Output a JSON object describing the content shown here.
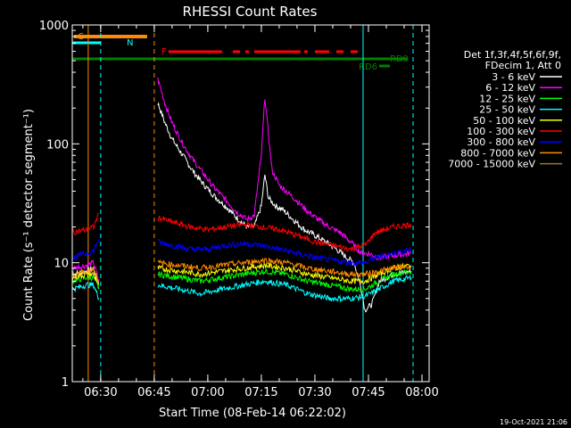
{
  "chart_data": {
    "type": "line",
    "title": "RHESSI Count Rates",
    "xlabel": "Start Time (08-Feb-14 06:22:02)",
    "ylabel": "Count Rate (s⁻¹ detector segment⁻¹)",
    "y_scale": "log",
    "ylim": [
      1,
      1000
    ],
    "xlim": [
      "06:22:02",
      "08:02:00"
    ],
    "x_ticks": [
      "06:30",
      "06:45",
      "07:00",
      "07:15",
      "07:30",
      "07:45",
      "08:00"
    ],
    "y_ticks": [
      "1",
      "10",
      "100",
      "1000"
    ],
    "grid": false,
    "legend_position": "right",
    "legend_header": [
      "Det 1f,3f,4f,5f,6f,9f,",
      "FDecim 1, Att 0"
    ],
    "series": [
      {
        "name": "3 - 6 keV",
        "color": "#ffffff",
        "points": [
          [
            "06:22:02",
            8
          ],
          [
            "06:26:00",
            8.5
          ],
          [
            "06:28:00",
            9
          ],
          [
            "06:29:30",
            6
          ],
          "gap",
          [
            "06:46:00",
            220
          ],
          [
            "06:48:00",
            150
          ],
          [
            "06:50:00",
            110
          ],
          [
            "06:53:00",
            80
          ],
          [
            "06:56:00",
            58
          ],
          [
            "06:59:00",
            45
          ],
          [
            "07:02:00",
            36
          ],
          [
            "07:05:00",
            30
          ],
          [
            "07:08:00",
            24
          ],
          [
            "07:11:00",
            20
          ],
          [
            "07:13:00",
            20
          ],
          [
            "07:15:00",
            30
          ],
          [
            "07:16:00",
            55
          ],
          [
            "07:17:00",
            35
          ],
          [
            "07:19:00",
            30
          ],
          [
            "07:21:00",
            28
          ],
          [
            "07:24:00",
            23
          ],
          [
            "07:27:00",
            19
          ],
          [
            "07:30:00",
            17
          ],
          [
            "07:33:00",
            15
          ],
          [
            "07:36:00",
            13
          ],
          [
            "07:39:00",
            11
          ],
          [
            "07:41:00",
            10
          ],
          [
            "07:43:00",
            6
          ],
          [
            "07:44:00",
            4
          ],
          [
            "07:46:00",
            4.5
          ],
          [
            "07:48:00",
            7
          ],
          [
            "07:52:00",
            8
          ],
          [
            "07:57:00",
            8.5
          ]
        ]
      },
      {
        "name": "6 - 12 keV",
        "color": "#ff00ff",
        "points": [
          [
            "06:22:02",
            9
          ],
          [
            "06:26:00",
            9.5
          ],
          [
            "06:28:00",
            10
          ],
          [
            "06:29:30",
            7
          ],
          "gap",
          [
            "06:46:00",
            350
          ],
          [
            "06:48:00",
            220
          ],
          [
            "06:50:00",
            150
          ],
          [
            "06:53:00",
            100
          ],
          [
            "06:56:00",
            72
          ],
          [
            "06:59:00",
            55
          ],
          [
            "07:02:00",
            42
          ],
          [
            "07:05:00",
            34
          ],
          [
            "07:08:00",
            27
          ],
          [
            "07:11:00",
            23
          ],
          [
            "07:13:00",
            25
          ],
          [
            "07:15:00",
            80
          ],
          [
            "07:16:00",
            250
          ],
          [
            "07:17:00",
            120
          ],
          [
            "07:18:00",
            60
          ],
          [
            "07:20:00",
            45
          ],
          [
            "07:22:00",
            40
          ],
          [
            "07:25:00",
            33
          ],
          [
            "07:28:00",
            27
          ],
          [
            "07:31:00",
            23
          ],
          [
            "07:34:00",
            20
          ],
          [
            "07:37:00",
            18
          ],
          [
            "07:40:00",
            15
          ],
          [
            "07:43:00",
            12
          ],
          [
            "07:45:00",
            12
          ],
          [
            "07:48:00",
            11
          ],
          [
            "07:52:00",
            11.5
          ],
          [
            "07:57:00",
            12
          ]
        ]
      },
      {
        "name": "12 - 25 keV",
        "color": "#00ff00",
        "points": [
          [
            "06:22:02",
            7
          ],
          [
            "06:26:00",
            7.5
          ],
          [
            "06:28:00",
            7.5
          ],
          [
            "06:29:30",
            6
          ],
          "gap",
          [
            "06:46:00",
            8
          ],
          [
            "06:52:00",
            7.5
          ],
          [
            "06:58:00",
            7
          ],
          [
            "07:04:00",
            7.5
          ],
          [
            "07:10:00",
            8
          ],
          [
            "07:16:00",
            8.5
          ],
          [
            "07:22:00",
            8
          ],
          [
            "07:28:00",
            7
          ],
          [
            "07:34:00",
            6.5
          ],
          [
            "07:40:00",
            6
          ],
          [
            "07:44:00",
            6
          ],
          [
            "07:48:00",
            7
          ],
          [
            "07:52:00",
            8
          ],
          [
            "07:57:00",
            8.5
          ]
        ]
      },
      {
        "name": "25 - 50 keV",
        "color": "#00ffff",
        "points": [
          [
            "06:22:02",
            6
          ],
          [
            "06:26:00",
            6.5
          ],
          [
            "06:28:00",
            6.5
          ],
          [
            "06:29:30",
            5
          ],
          "gap",
          [
            "06:46:00",
            6.5
          ],
          [
            "06:52:00",
            6
          ],
          [
            "06:58:00",
            5.5
          ],
          [
            "07:04:00",
            6
          ],
          [
            "07:10:00",
            6.5
          ],
          [
            "07:16:00",
            7
          ],
          [
            "07:22:00",
            6.5
          ],
          [
            "07:28:00",
            5.5
          ],
          [
            "07:34:00",
            5
          ],
          [
            "07:40:00",
            5
          ],
          [
            "07:44:00",
            5.2
          ],
          [
            "07:48:00",
            6
          ],
          [
            "07:52:00",
            7
          ],
          [
            "07:57:00",
            7.5
          ]
        ]
      },
      {
        "name": "50 - 100 keV",
        "color": "#ffff00",
        "points": [
          [
            "06:22:02",
            7.5
          ],
          [
            "06:26:00",
            8
          ],
          [
            "06:28:00",
            8
          ],
          [
            "06:29:30",
            6.5
          ],
          "gap",
          [
            "06:46:00",
            9
          ],
          [
            "06:52:00",
            8.5
          ],
          [
            "06:58:00",
            8
          ],
          [
            "07:04:00",
            8.5
          ],
          [
            "07:10:00",
            9
          ],
          [
            "07:16:00",
            9.5
          ],
          [
            "07:22:00",
            9
          ],
          [
            "07:28:00",
            8
          ],
          [
            "07:34:00",
            7.5
          ],
          [
            "07:40:00",
            7
          ],
          [
            "07:44:00",
            7
          ],
          [
            "07:48:00",
            8
          ],
          [
            "07:52:00",
            9
          ],
          [
            "07:57:00",
            9.5
          ]
        ]
      },
      {
        "name": "100 - 300 keV",
        "color": "#ff0000",
        "points": [
          [
            "06:22:02",
            18
          ],
          [
            "06:26:00",
            19
          ],
          [
            "06:28:00",
            20
          ],
          [
            "06:29:30",
            26
          ],
          "gap",
          [
            "06:46:00",
            24
          ],
          [
            "06:50:00",
            22
          ],
          [
            "06:55:00",
            20
          ],
          [
            "07:00:00",
            19
          ],
          [
            "07:05:00",
            20
          ],
          [
            "07:10:00",
            21
          ],
          [
            "07:15:00",
            20
          ],
          [
            "07:20:00",
            19
          ],
          [
            "07:25:00",
            17
          ],
          [
            "07:30:00",
            15
          ],
          [
            "07:35:00",
            14
          ],
          [
            "07:40:00",
            13
          ],
          [
            "07:44:00",
            14
          ],
          [
            "07:47:00",
            18
          ],
          [
            "07:52:00",
            20
          ],
          [
            "07:57:00",
            21
          ]
        ]
      },
      {
        "name": "300 - 800 keV",
        "color": "#0000ff",
        "points": [
          [
            "06:22:02",
            11
          ],
          [
            "06:26:00",
            12
          ],
          [
            "06:28:00",
            12.5
          ],
          [
            "06:29:30",
            16
          ],
          "gap",
          [
            "06:46:00",
            15
          ],
          [
            "06:50:00",
            14
          ],
          [
            "06:55:00",
            13
          ],
          [
            "07:00:00",
            13
          ],
          [
            "07:05:00",
            14
          ],
          [
            "07:10:00",
            14.5
          ],
          [
            "07:15:00",
            14
          ],
          [
            "07:20:00",
            13
          ],
          [
            "07:25:00",
            12
          ],
          [
            "07:30:00",
            11
          ],
          [
            "07:35:00",
            10.5
          ],
          [
            "07:40:00",
            10
          ],
          [
            "07:44:00",
            10
          ],
          [
            "07:47:00",
            11
          ],
          [
            "07:52:00",
            12
          ],
          [
            "07:57:00",
            13
          ]
        ]
      },
      {
        "name": "800 - 7000 keV",
        "color": "#ff8c00",
        "points": [
          [
            "06:22:02",
            8
          ],
          [
            "06:26:00",
            8.5
          ],
          [
            "06:28:00",
            9
          ],
          [
            "06:29:30",
            7
          ],
          "gap",
          [
            "06:46:00",
            10
          ],
          [
            "06:52:00",
            9.5
          ],
          [
            "06:58:00",
            9
          ],
          [
            "07:04:00",
            9.5
          ],
          [
            "07:10:00",
            10
          ],
          [
            "07:16:00",
            10.5
          ],
          [
            "07:22:00",
            10
          ],
          [
            "07:28:00",
            9
          ],
          [
            "07:34:00",
            8.5
          ],
          [
            "07:40:00",
            8
          ],
          [
            "07:44:00",
            8
          ],
          [
            "07:48:00",
            8.5
          ],
          [
            "07:52:00",
            9
          ],
          [
            "07:57:00",
            9.5
          ]
        ]
      },
      {
        "name": "7000 - 15000 keV",
        "color": "#a0781e",
        "points": []
      }
    ],
    "annotations": [
      {
        "label": "S",
        "color": "#ff8c00",
        "bar": [
          "06:22:30",
          "06:43:00"
        ]
      },
      {
        "label": "N",
        "color": "#00ffff",
        "bar": [
          "06:22:02",
          "06:30:00"
        ]
      },
      {
        "label": "F",
        "color": "#ff0000",
        "segments": [
          [
            "06:49:00",
            "07:04:00"
          ],
          [
            "07:07:00",
            "07:09:00"
          ],
          [
            "07:10:30",
            "07:11:30"
          ],
          [
            "07:13:00",
            "07:26:00"
          ],
          [
            "07:27:00",
            "07:28:00"
          ],
          [
            "07:30:00",
            "07:34:00"
          ],
          [
            "07:36:00",
            "07:38:00"
          ],
          [
            "07:40:00",
            "07:42:00"
          ]
        ]
      },
      {
        "label": "RD9",
        "color": "#008000",
        "bar": [
          "06:22:02",
          "07:56:00"
        ]
      },
      {
        "label": "RD6",
        "color": "#008000",
        "bar": [
          "07:48:00",
          "07:51:00"
        ]
      }
    ],
    "vertical_lines": [
      {
        "time": "06:22:02",
        "color": "#00ffff",
        "style": "solid"
      },
      {
        "time": "06:26:30",
        "color": "#ff8c00",
        "style": "solid"
      },
      {
        "time": "06:30:00",
        "color": "#00ffff",
        "style": "dashed"
      },
      {
        "time": "06:45:00",
        "color": "#ff8c00",
        "style": "dashed"
      },
      {
        "time": "07:43:30",
        "color": "#00ffff",
        "style": "solid"
      },
      {
        "time": "07:57:30",
        "color": "#00ffff",
        "style": "dashed"
      }
    ]
  },
  "timestamp": "19-Oct-2021 21:06"
}
